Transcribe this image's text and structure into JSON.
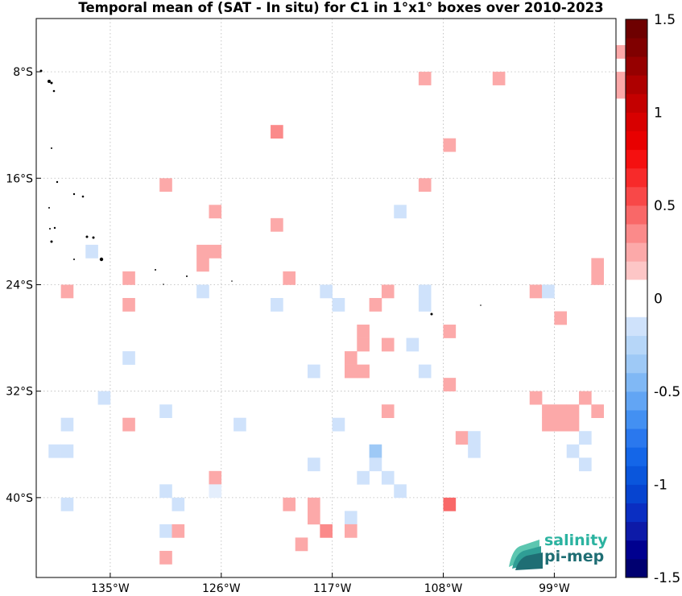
{
  "title": "Temporal mean of (SAT - In situ) for C1 in 1°x1° boxes over 2010-2023",
  "logo": {
    "line1": "salinity",
    "line2": "pi-mep"
  },
  "axes": {
    "x_ticks": [
      "135°W",
      "126°W",
      "117°W",
      "108°W",
      "99°W"
    ],
    "y_ticks": [
      "8°S",
      "16°S",
      "24°S",
      "32°S",
      "40°S"
    ]
  },
  "colorbar": {
    "min": -1.5,
    "max": 1.5,
    "tick_labels": [
      "1.5",
      "1",
      "0.5",
      "0",
      "-0.5",
      "-1",
      "-1.5"
    ]
  },
  "chart_data": {
    "type": "heatmap",
    "title": "Temporal mean of (SAT - In situ) for C1 in 1°x1° boxes over 2010-2023",
    "lon_range": [
      -141,
      -94
    ],
    "lat_range": [
      -46,
      -4
    ],
    "grid": true,
    "cells": [
      {
        "lon": -94,
        "lat": -6,
        "value": 0.2
      },
      {
        "lon": -110,
        "lat": -8,
        "value": 0.2
      },
      {
        "lon": -104,
        "lat": -8,
        "value": 0.2
      },
      {
        "lon": -94,
        "lat": -8,
        "value": 0.2
      },
      {
        "lon": -94,
        "lat": -9,
        "value": 0.2
      },
      {
        "lon": -122,
        "lat": -12,
        "value": 0.35
      },
      {
        "lon": -108,
        "lat": -13,
        "value": 0.2
      },
      {
        "lon": -131,
        "lat": -16,
        "value": 0.2
      },
      {
        "lon": -110,
        "lat": -16,
        "value": 0.2
      },
      {
        "lon": -112,
        "lat": -18,
        "value": -0.15
      },
      {
        "lon": -127,
        "lat": -18,
        "value": 0.2
      },
      {
        "lon": -122,
        "lat": -19,
        "value": 0.2
      },
      {
        "lon": -137,
        "lat": -21,
        "value": -0.15
      },
      {
        "lon": -128,
        "lat": -21,
        "value": 0.2
      },
      {
        "lon": -127,
        "lat": -21,
        "value": 0.2
      },
      {
        "lon": -128,
        "lat": -22,
        "value": 0.2
      },
      {
        "lon": -96,
        "lat": -22,
        "value": 0.2
      },
      {
        "lon": -96,
        "lat": -23,
        "value": 0.2
      },
      {
        "lon": -134,
        "lat": -23,
        "value": 0.2
      },
      {
        "lon": -121,
        "lat": -23,
        "value": 0.2
      },
      {
        "lon": -139,
        "lat": -24,
        "value": 0.2
      },
      {
        "lon": -128,
        "lat": -24,
        "value": -0.15
      },
      {
        "lon": -118,
        "lat": -24,
        "value": -0.1
      },
      {
        "lon": -113,
        "lat": -24,
        "value": 0.2
      },
      {
        "lon": -110,
        "lat": -24,
        "value": -0.1
      },
      {
        "lon": -101,
        "lat": -24,
        "value": 0.2
      },
      {
        "lon": -100,
        "lat": -24,
        "value": -0.15
      },
      {
        "lon": -134,
        "lat": -25,
        "value": 0.2
      },
      {
        "lon": -122,
        "lat": -25,
        "value": -0.1
      },
      {
        "lon": -117,
        "lat": -25,
        "value": -0.15
      },
      {
        "lon": -114,
        "lat": -25,
        "value": 0.2
      },
      {
        "lon": -110,
        "lat": -25,
        "value": -0.1
      },
      {
        "lon": -99,
        "lat": -26,
        "value": 0.2
      },
      {
        "lon": -115,
        "lat": -27,
        "value": 0.2
      },
      {
        "lon": -108,
        "lat": -27,
        "value": 0.2
      },
      {
        "lon": -115,
        "lat": -28,
        "value": 0.2
      },
      {
        "lon": -113,
        "lat": -28,
        "value": 0.2
      },
      {
        "lon": -111,
        "lat": -28,
        "value": -0.15
      },
      {
        "lon": -134,
        "lat": -29,
        "value": -0.1
      },
      {
        "lon": -116,
        "lat": -29,
        "value": 0.2
      },
      {
        "lon": -116,
        "lat": -30,
        "value": 0.2
      },
      {
        "lon": -119,
        "lat": -30,
        "value": -0.1
      },
      {
        "lon": -115,
        "lat": -30,
        "value": 0.2
      },
      {
        "lon": -110,
        "lat": -30,
        "value": -0.1
      },
      {
        "lon": -108,
        "lat": -31,
        "value": 0.2
      },
      {
        "lon": -136,
        "lat": -32,
        "value": -0.1
      },
      {
        "lon": -101,
        "lat": -32,
        "value": 0.2
      },
      {
        "lon": -97,
        "lat": -32,
        "value": 0.2
      },
      {
        "lon": -131,
        "lat": -33,
        "value": -0.1
      },
      {
        "lon": -113,
        "lat": -33,
        "value": 0.2
      },
      {
        "lon": -100,
        "lat": -33,
        "value": 0.2
      },
      {
        "lon": -99,
        "lat": -33,
        "value": 0.2
      },
      {
        "lon": -98,
        "lat": -33,
        "value": 0.2
      },
      {
        "lon": -96,
        "lat": -33,
        "value": 0.2
      },
      {
        "lon": -139,
        "lat": -34,
        "value": -0.1
      },
      {
        "lon": -134,
        "lat": -34,
        "value": 0.2
      },
      {
        "lon": -125,
        "lat": -34,
        "value": -0.1
      },
      {
        "lon": -117,
        "lat": -34,
        "value": -0.1
      },
      {
        "lon": -100,
        "lat": -34,
        "value": 0.2
      },
      {
        "lon": -99,
        "lat": -34,
        "value": 0.2
      },
      {
        "lon": -98,
        "lat": -34,
        "value": 0.2
      },
      {
        "lon": -107,
        "lat": -35,
        "value": 0.2
      },
      {
        "lon": -106,
        "lat": -35,
        "value": -0.1
      },
      {
        "lon": -97,
        "lat": -35,
        "value": -0.1
      },
      {
        "lon": -140,
        "lat": -36,
        "value": -0.1
      },
      {
        "lon": -139,
        "lat": -36,
        "value": -0.1
      },
      {
        "lon": -114,
        "lat": -36,
        "value": -0.3
      },
      {
        "lon": -106,
        "lat": -36,
        "value": -0.1
      },
      {
        "lon": -98,
        "lat": -36,
        "value": -0.1
      },
      {
        "lon": -119,
        "lat": -37,
        "value": -0.1
      },
      {
        "lon": -114,
        "lat": -37,
        "value": -0.1
      },
      {
        "lon": -97,
        "lat": -37,
        "value": -0.1
      },
      {
        "lon": -127,
        "lat": -38,
        "value": 0.2
      },
      {
        "lon": -115,
        "lat": -38,
        "value": -0.1
      },
      {
        "lon": -113,
        "lat": -38,
        "value": -0.1
      },
      {
        "lon": -131,
        "lat": -39,
        "value": -0.1
      },
      {
        "lon": -127,
        "lat": -39,
        "value": -0.05
      },
      {
        "lon": -112,
        "lat": -39,
        "value": -0.1
      },
      {
        "lon": -139,
        "lat": -40,
        "value": -0.1
      },
      {
        "lon": -130,
        "lat": -40,
        "value": -0.1
      },
      {
        "lon": -121,
        "lat": -40,
        "value": 0.2
      },
      {
        "lon": -119,
        "lat": -40,
        "value": 0.2
      },
      {
        "lon": -108,
        "lat": -40,
        "value": 0.4
      },
      {
        "lon": -119,
        "lat": -41,
        "value": 0.2
      },
      {
        "lon": -116,
        "lat": -41,
        "value": -0.1
      },
      {
        "lon": -131,
        "lat": -42,
        "value": -0.1
      },
      {
        "lon": -130,
        "lat": -42,
        "value": 0.2
      },
      {
        "lon": -118,
        "lat": -42,
        "value": 0.3
      },
      {
        "lon": -116,
        "lat": -42,
        "value": 0.2
      },
      {
        "lon": -120,
        "lat": -43,
        "value": 0.2
      },
      {
        "lon": -131,
        "lat": -44,
        "value": 0.2
      }
    ]
  }
}
